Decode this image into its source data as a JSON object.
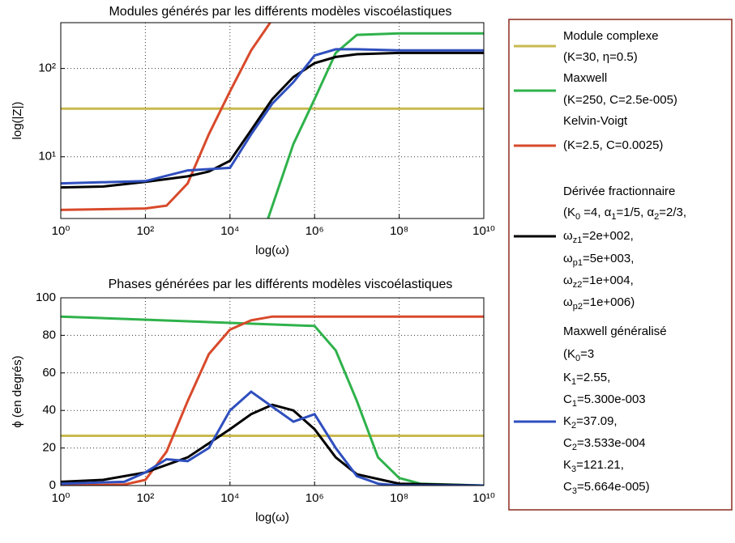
{
  "chart_data": [
    {
      "type": "line",
      "title": "Modules générés par les différents modèles viscoélastiques",
      "xlabel": "log(ω)",
      "ylabel": "log(|Z|)",
      "log_x": true,
      "log_y": true,
      "grid": true,
      "xlim": [
        1,
        10000000000
      ],
      "ylim": [
        2,
        330
      ],
      "xticks": [
        {
          "value": 1,
          "label": "10⁰"
        },
        {
          "value": 100,
          "label": "10²"
        },
        {
          "value": 10000,
          "label": "10⁴"
        },
        {
          "value": 1000000,
          "label": "10⁶"
        },
        {
          "value": 100000000,
          "label": "10⁸"
        },
        {
          "value": 10000000000,
          "label": "10¹⁰"
        }
      ],
      "yticks": [
        {
          "value": 10,
          "label": "10¹"
        },
        {
          "value": 100,
          "label": "10²"
        }
      ],
      "series": [
        {
          "name": [
            "Module complexe",
            "(K=30, η=0.5)"
          ],
          "color": "#c9b94f",
          "x": [
            1,
            10000000000
          ],
          "values": [
            35,
            35
          ]
        },
        {
          "name": [
            "Maxwell",
            "(K=250, C=2.5e-005)"
          ],
          "color": "#2fb24b",
          "x": [
            79433,
            316228,
            1000000,
            3162278,
            10000000,
            100000000,
            10000000000
          ],
          "values": [
            2,
            14,
            45,
            150,
            240,
            250,
            250
          ]
        },
        {
          "name": [
            "Kelvin-Voigt",
            "(K=2.5, C=0.0025)"
          ],
          "color": "#d84a2b",
          "x": [
            1,
            100,
            316,
            1000,
            3162,
            10000,
            31623,
            89125
          ],
          "values": [
            2.5,
            2.6,
            2.8,
            5,
            18,
            55,
            160,
            330
          ]
        },
        {
          "name": [
            "Dérivée fractionnaire",
            [
              "(K",
              {
                "sub": "0"
              },
              " =4, α",
              {
                "sub": "1"
              },
              "=1/5, α",
              {
                "sub": "2"
              },
              "=2/3,"
            ],
            [
              " ω",
              {
                "sub": "z1"
              },
              "=2e+002,"
            ],
            [
              "ω",
              {
                "sub": "p1"
              },
              "=5e+003,"
            ],
            [
              "ω",
              {
                "sub": "z2"
              },
              "=1e+004,"
            ],
            [
              "ω",
              {
                "sub": "p2"
              },
              "=1e+006)"
            ]
          ],
          "color": "#000000",
          "x": [
            1,
            10,
            100,
            1000,
            3162,
            10000,
            31623,
            100000,
            316228,
            1000000,
            3162278,
            10000000,
            100000000,
            10000000000
          ],
          "values": [
            4.5,
            4.6,
            5.2,
            6,
            6.8,
            9,
            20,
            45,
            80,
            115,
            135,
            145,
            150,
            150
          ]
        },
        {
          "name": [
            "Maxwell généralisé",
            [
              "(K",
              {
                "sub": "0"
              },
              "=3"
            ],
            [
              "K",
              {
                "sub": "1"
              },
              "=2.55,"
            ],
            [
              "C",
              {
                "sub": "1"
              },
              "=5.300e-003"
            ],
            [
              "K",
              {
                "sub": "2"
              },
              "=37.09,"
            ],
            [
              "C",
              {
                "sub": "2"
              },
              "=3.533e-004"
            ],
            [
              "K",
              {
                "sub": "3"
              },
              "=121.21,"
            ],
            [
              "C",
              {
                "sub": "3"
              },
              "=5.664e-005)"
            ]
          ],
          "color": "#2f4fbe",
          "x": [
            1,
            100,
            1000,
            10000,
            31623,
            100000,
            316228,
            1000000,
            3162278,
            10000000,
            100000000,
            10000000000
          ],
          "values": [
            5,
            5.3,
            7,
            7.5,
            18,
            40,
            70,
            140,
            165,
            165,
            160,
            160
          ]
        }
      ]
    },
    {
      "type": "line",
      "title": "Phases générées par les différents modèles viscoélastiques",
      "xlabel": "log(ω)",
      "ylabel": "ϕ  (en degrés)",
      "log_x": true,
      "log_y": false,
      "grid": true,
      "xlim": [
        1,
        10000000000
      ],
      "ylim": [
        0,
        100
      ],
      "xticks": [
        {
          "value": 1,
          "label": "10⁰"
        },
        {
          "value": 100,
          "label": "10²"
        },
        {
          "value": 10000,
          "label": "10⁴"
        },
        {
          "value": 1000000,
          "label": "10⁶"
        },
        {
          "value": 100000000,
          "label": "10⁸"
        },
        {
          "value": 10000000000,
          "label": "10¹⁰"
        }
      ],
      "yticks": [
        0,
        20,
        40,
        60,
        80,
        100
      ],
      "series": [
        {
          "color": "#c9b94f",
          "x": [
            1,
            10000000000
          ],
          "values": [
            26.5,
            26.5
          ]
        },
        {
          "color": "#2fb24b",
          "x": [
            1,
            1000000,
            3162278,
            10000000,
            31622777,
            100000000,
            316227766,
            10000000000
          ],
          "values": [
            90,
            85,
            72,
            45,
            15,
            4,
            1,
            0
          ]
        },
        {
          "color": "#d84a2b",
          "x": [
            1,
            31.6,
            100,
            316,
            1000,
            3162,
            10000,
            31623,
            100000,
            10000000000
          ],
          "values": [
            0,
            0.5,
            3,
            18,
            45,
            70,
            83,
            88,
            90,
            90
          ]
        },
        {
          "color": "#000000",
          "x": [
            1,
            10,
            100,
            1000,
            10000,
            31623,
            100000,
            316228,
            1000000,
            3162278,
            10000000,
            100000000,
            10000000000
          ],
          "values": [
            2,
            3,
            7,
            15,
            30,
            38,
            43,
            40,
            30,
            15,
            6,
            1,
            0
          ]
        },
        {
          "color": "#2f4fbe",
          "x": [
            1,
            31.6,
            100,
            316,
            1000,
            3162,
            10000,
            31623,
            100000,
            316228,
            1000000,
            3162278,
            10000000,
            31622777,
            100000000,
            10000000000
          ],
          "values": [
            1,
            2,
            7,
            14,
            13,
            20,
            40,
            50,
            42,
            34,
            38,
            20,
            5,
            1,
            0,
            0
          ]
        }
      ]
    }
  ]
}
